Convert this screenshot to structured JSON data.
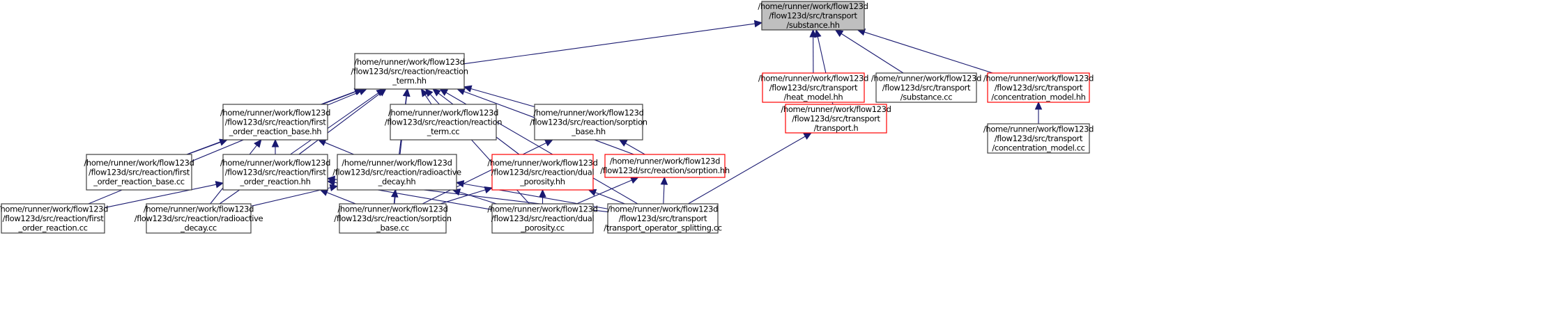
{
  "colors": {
    "edge": "#191970",
    "node_border": "#404040",
    "node_red_border": "#ff0000",
    "root_fill": "#bfbfbf",
    "node_fill": "#ffffff"
  },
  "nodes": [
    {
      "id": "substance_hh",
      "lines": [
        "/home/runner/work/flow123d",
        "/flow123d/src/transport",
        "/substance.hh"
      ],
      "style": "root"
    },
    {
      "id": "reaction_term_hh",
      "lines": [
        "/home/runner/work/flow123d",
        "/flow123d/src/reaction/reaction",
        "_term.hh"
      ],
      "style": "normal"
    },
    {
      "id": "heat_model_hh",
      "lines": [
        "/home/runner/work/flow123d",
        "/flow123d/src/transport",
        "/heat_model.hh"
      ],
      "style": "red"
    },
    {
      "id": "substance_cc",
      "lines": [
        "/home/runner/work/flow123d",
        "/flow123d/src/transport",
        "/substance.cc"
      ],
      "style": "normal"
    },
    {
      "id": "concentration_model_hh",
      "lines": [
        "/home/runner/work/flow123d",
        "/flow123d/src/transport",
        "/concentration_model.hh"
      ],
      "style": "red"
    },
    {
      "id": "first_order_reaction_base_hh",
      "lines": [
        "/home/runner/work/flow123d",
        "/flow123d/src/reaction/first",
        "_order_reaction_base.hh"
      ],
      "style": "normal"
    },
    {
      "id": "reaction_term_cc",
      "lines": [
        "/home/runner/work/flow123d",
        "/flow123d/src/reaction/reaction",
        "_term.cc"
      ],
      "style": "normal"
    },
    {
      "id": "sorption_base_hh",
      "lines": [
        "/home/runner/work/flow123d",
        "/flow123d/src/reaction/sorption",
        "_base.hh"
      ],
      "style": "normal"
    },
    {
      "id": "transport_h",
      "lines": [
        "/home/runner/work/flow123d",
        "/flow123d/src/transport",
        "/transport.h"
      ],
      "style": "red"
    },
    {
      "id": "concentration_model_cc",
      "lines": [
        "/home/runner/work/flow123d",
        "/flow123d/src/transport",
        "/concentration_model.cc"
      ],
      "style": "normal"
    },
    {
      "id": "first_order_reaction_base_cc",
      "lines": [
        "/home/runner/work/flow123d",
        "/flow123d/src/reaction/first",
        "_order_reaction_base.cc"
      ],
      "style": "normal"
    },
    {
      "id": "first_order_reaction_hh",
      "lines": [
        "/home/runner/work/flow123d",
        "/flow123d/src/reaction/first",
        "_order_reaction.hh"
      ],
      "style": "normal"
    },
    {
      "id": "radioactive_decay_hh",
      "lines": [
        "/home/runner/work/flow123d",
        "/flow123d/src/reaction/radioactive",
        "_decay.hh"
      ],
      "style": "normal"
    },
    {
      "id": "dual_porosity_hh",
      "lines": [
        "/home/runner/work/flow123d",
        "/flow123d/src/reaction/dual",
        "_porosity.hh"
      ],
      "style": "red"
    },
    {
      "id": "sorption_hh",
      "lines": [
        "/home/runner/work/flow123d",
        "/flow123d/src/reaction/sorption.hh"
      ],
      "style": "red"
    },
    {
      "id": "first_order_reaction_cc",
      "lines": [
        "/home/runner/work/flow123d",
        "/flow123d/src/reaction/first",
        "_order_reaction.cc"
      ],
      "style": "normal"
    },
    {
      "id": "radioactive_decay_cc",
      "lines": [
        "/home/runner/work/flow123d",
        "/flow123d/src/reaction/radioactive",
        "_decay.cc"
      ],
      "style": "normal"
    },
    {
      "id": "sorption_base_cc",
      "lines": [
        "/home/runner/work/flow123d",
        "/flow123d/src/reaction/sorption",
        "_base.cc"
      ],
      "style": "normal"
    },
    {
      "id": "dual_porosity_cc",
      "lines": [
        "/home/runner/work/flow123d",
        "/flow123d/src/reaction/dual",
        "_porosity.cc"
      ],
      "style": "normal"
    },
    {
      "id": "transport_operator_splitting_cc",
      "lines": [
        "/home/runner/work/flow123d",
        "/flow123d/src/transport",
        "/transport_operator_splitting.cc"
      ],
      "style": "normal"
    }
  ],
  "edges": [
    [
      "reaction_term_hh",
      "substance_hh"
    ],
    [
      "heat_model_hh",
      "substance_hh"
    ],
    [
      "substance_cc",
      "substance_hh"
    ],
    [
      "concentration_model_hh",
      "substance_hh"
    ],
    [
      "transport_h",
      "substance_hh"
    ],
    [
      "concentration_model_cc",
      "concentration_model_hh"
    ],
    [
      "transport_operator_splitting_cc",
      "transport_h"
    ],
    [
      "first_order_reaction_base_hh",
      "reaction_term_hh"
    ],
    [
      "reaction_term_cc",
      "reaction_term_hh"
    ],
    [
      "sorption_base_hh",
      "reaction_term_hh"
    ],
    [
      "first_order_reaction_base_cc",
      "reaction_term_hh"
    ],
    [
      "first_order_reaction_hh",
      "reaction_term_hh"
    ],
    [
      "radioactive_decay_hh",
      "reaction_term_hh"
    ],
    [
      "dual_porosity_hh",
      "reaction_term_hh"
    ],
    [
      "sorption_hh",
      "reaction_term_hh"
    ],
    [
      "first_order_reaction_cc",
      "reaction_term_hh"
    ],
    [
      "radioactive_decay_cc",
      "reaction_term_hh"
    ],
    [
      "sorption_base_cc",
      "reaction_term_hh"
    ],
    [
      "dual_porosity_cc",
      "reaction_term_hh"
    ],
    [
      "transport_operator_splitting_cc",
      "reaction_term_hh"
    ],
    [
      "first_order_reaction_base_cc",
      "first_order_reaction_base_hh"
    ],
    [
      "first_order_reaction_hh",
      "first_order_reaction_base_hh"
    ],
    [
      "radioactive_decay_hh",
      "first_order_reaction_base_hh"
    ],
    [
      "radioactive_decay_cc",
      "first_order_reaction_base_hh"
    ],
    [
      "first_order_reaction_cc",
      "first_order_reaction_hh"
    ],
    [
      "sorption_base_cc",
      "first_order_reaction_hh"
    ],
    [
      "dual_porosity_cc",
      "first_order_reaction_hh"
    ],
    [
      "transport_operator_splitting_cc",
      "first_order_reaction_hh"
    ],
    [
      "radioactive_decay_cc",
      "radioactive_decay_hh"
    ],
    [
      "sorption_base_cc",
      "radioactive_decay_hh"
    ],
    [
      "dual_porosity_cc",
      "radioactive_decay_hh"
    ],
    [
      "transport_operator_splitting_cc",
      "radioactive_decay_hh"
    ],
    [
      "sorption_base_cc",
      "sorption_base_hh"
    ],
    [
      "sorption_hh",
      "sorption_base_hh"
    ],
    [
      "sorption_base_cc",
      "dual_porosity_hh"
    ],
    [
      "dual_porosity_cc",
      "dual_porosity_hh"
    ],
    [
      "transport_operator_splitting_cc",
      "dual_porosity_hh"
    ],
    [
      "dual_porosity_cc",
      "sorption_hh"
    ],
    [
      "transport_operator_splitting_cc",
      "sorption_hh"
    ]
  ]
}
